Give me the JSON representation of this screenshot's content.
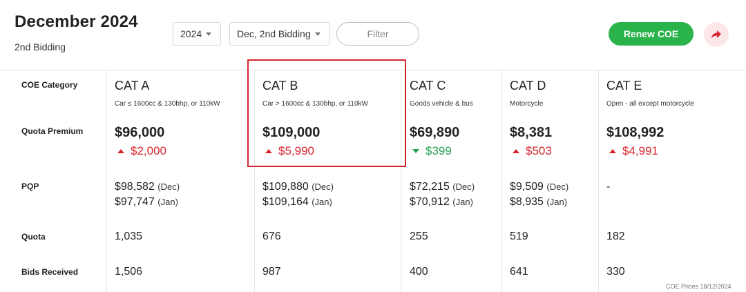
{
  "header": {
    "title": "December 2024",
    "subtitle": "2nd Bidding",
    "year_select": "2024",
    "bidding_select": "Dec, 2nd Bidding",
    "filter_label": "Filter",
    "renew_label": "Renew COE",
    "share_icon": "share-arrow-icon"
  },
  "row_labels": {
    "category": "COE Category",
    "premium": "Quota Premium",
    "pqp": "PQP",
    "quota": "Quota",
    "bids": "Bids Received"
  },
  "categories": [
    {
      "name": "CAT A",
      "desc": "Car ≤ 1600cc & 130bhp, or 110kW",
      "premium": "$96,000",
      "change": "$2,000",
      "direction": "up",
      "pqp": [
        {
          "value": "$98,582",
          "month": "(Dec)"
        },
        {
          "value": "$97,747",
          "month": "(Jan)"
        }
      ],
      "quota": "1,035",
      "bids": "1,506"
    },
    {
      "name": "CAT B",
      "desc": "Car > 1600cc & 130bhp, or 110kW",
      "premium": "$109,000",
      "change": "$5,990",
      "direction": "up",
      "pqp": [
        {
          "value": "$109,880",
          "month": "(Dec)"
        },
        {
          "value": "$109,164",
          "month": "(Jan)"
        }
      ],
      "quota": "676",
      "bids": "987"
    },
    {
      "name": "CAT C",
      "desc": "Goods vehicle & bus",
      "premium": "$69,890",
      "change": "$399",
      "direction": "down",
      "pqp": [
        {
          "value": "$72,215",
          "month": "(Dec)"
        },
        {
          "value": "$70,912",
          "month": "(Jan)"
        }
      ],
      "quota": "255",
      "bids": "400"
    },
    {
      "name": "CAT D",
      "desc": "Motorcycle",
      "premium": "$8,381",
      "change": "$503",
      "direction": "up",
      "pqp": [
        {
          "value": "$9,509",
          "month": "(Dec)"
        },
        {
          "value": "$8,935",
          "month": "(Jan)"
        }
      ],
      "quota": "519",
      "bids": "641"
    },
    {
      "name": "CAT E",
      "desc": "Open - all except motorcycle",
      "premium": "$108,992",
      "change": "$4,991",
      "direction": "up",
      "pqp_empty": "-",
      "quota": "182",
      "bids": "330"
    }
  ],
  "footnote": "COE Prices 18/12/2024",
  "colors": {
    "increase": "#d9262e",
    "decrease": "#23a455",
    "renew_button": "#2ab34a",
    "highlight_box": "#d4262e"
  }
}
